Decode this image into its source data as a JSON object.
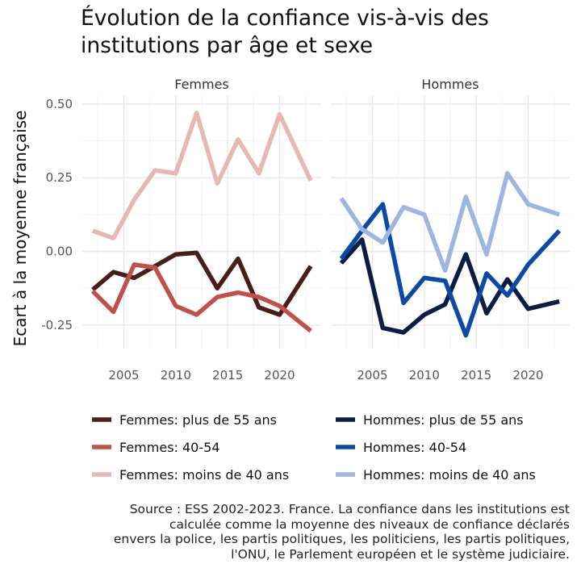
{
  "title_lines": [
    "Évolution de la confiance vis-à-vis des",
    "institutions par âge et sexe"
  ],
  "caption_lines": [
    "Source : ESS 2002-2023. France. La confiance dans les institutions est",
    "calculée comme la moyenne des niveaux de confiance déclarés",
    "envers la police, les partis politiques, les politiciens, les partis politiques,",
    "l'ONU, le Parlement européen et le système judiciaire."
  ],
  "chart_data": {
    "type": "line",
    "ylabel": "Ecart à la moyenne française",
    "xlabel": "",
    "xlim": [
      2001,
      2024
    ],
    "ylim": [
      -0.33,
      0.53
    ],
    "x_ticks": [
      2005,
      2010,
      2015,
      2020
    ],
    "y_ticks": [
      0.5,
      0.25,
      0.0,
      -0.25
    ],
    "y_tick_labels": [
      "0.50",
      "0.25",
      "0.00",
      "-0.25"
    ],
    "grid": true,
    "legend_position": "bottom",
    "panels": [
      {
        "label": "Femmes",
        "series": [
          {
            "name": "Femmes: plus de 55 ans",
            "color": "#4a1d17",
            "x": [
              2002,
              2004,
              2006,
              2008,
              2010,
              2012,
              2014,
              2016,
              2018,
              2020,
              2023
            ],
            "y": [
              -0.13,
              -0.07,
              -0.09,
              -0.05,
              -0.01,
              -0.005,
              -0.125,
              -0.025,
              -0.19,
              -0.215,
              -0.05
            ]
          },
          {
            "name": "Femmes: 40-54",
            "color": "#c0504a",
            "x": [
              2002,
              2004,
              2006,
              2008,
              2010,
              2012,
              2014,
              2016,
              2018,
              2020,
              2023
            ],
            "y": [
              -0.135,
              -0.205,
              -0.045,
              -0.055,
              -0.185,
              -0.215,
              -0.155,
              -0.14,
              -0.155,
              -0.185,
              -0.27
            ]
          },
          {
            "name": "Femmes: moins de 40 ans",
            "color": "#e6b8b1",
            "x": [
              2002,
              2004,
              2006,
              2008,
              2010,
              2012,
              2014,
              2016,
              2018,
              2020,
              2023
            ],
            "y": [
              0.07,
              0.045,
              0.175,
              0.275,
              0.265,
              0.47,
              0.23,
              0.38,
              0.265,
              0.465,
              0.24
            ]
          }
        ]
      },
      {
        "label": "Hommes",
        "series": [
          {
            "name": "Hommes: plus de 55 ans",
            "color": "#0b1d45",
            "x": [
              2002,
              2004,
              2006,
              2008,
              2010,
              2012,
              2014,
              2016,
              2018,
              2020,
              2023
            ],
            "y": [
              -0.04,
              0.04,
              -0.26,
              -0.275,
              -0.215,
              -0.18,
              -0.01,
              -0.21,
              -0.095,
              -0.195,
              -0.17
            ]
          },
          {
            "name": "Hommes: 40-54",
            "color": "#0d4aa8",
            "x": [
              2002,
              2004,
              2006,
              2008,
              2010,
              2012,
              2014,
              2016,
              2018,
              2020,
              2023
            ],
            "y": [
              -0.025,
              0.07,
              0.16,
              -0.175,
              -0.09,
              -0.1,
              -0.285,
              -0.075,
              -0.15,
              -0.045,
              0.07
            ]
          },
          {
            "name": "Hommes: moins de 40 ans",
            "color": "#9db5e0",
            "x": [
              2002,
              2004,
              2006,
              2008,
              2010,
              2012,
              2014,
              2016,
              2018,
              2020,
              2023
            ],
            "y": [
              0.18,
              0.075,
              0.03,
              0.15,
              0.125,
              -0.065,
              0.185,
              -0.01,
              0.265,
              0.16,
              0.125
            ]
          }
        ]
      }
    ],
    "legend_columns": [
      [
        "Femmes: plus de 55 ans",
        "Femmes: 40-54",
        "Femmes: moins de 40 ans"
      ],
      [
        "Hommes: plus de 55 ans",
        "Hommes: 40-54",
        "Hommes: moins de 40 ans"
      ]
    ]
  }
}
